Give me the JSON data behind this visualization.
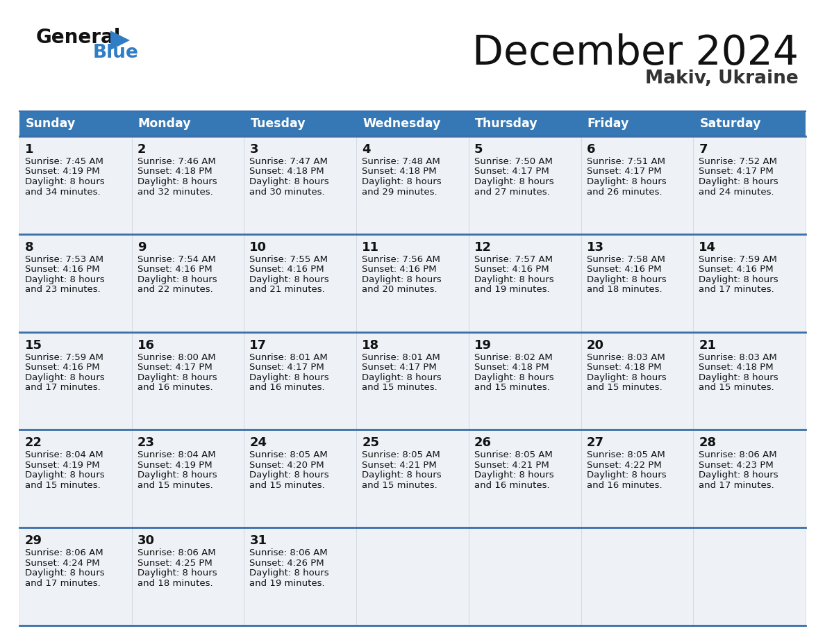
{
  "title": "December 2024",
  "subtitle": "Makiv, Ukraine",
  "days_of_week": [
    "Sunday",
    "Monday",
    "Tuesday",
    "Wednesday",
    "Thursday",
    "Friday",
    "Saturday"
  ],
  "header_bg": "#3578b5",
  "header_text_color": "#ffffff",
  "cell_bg": "#eef2f7",
  "border_color": "#3a6fa8",
  "text_color": "#111111",
  "logo_black": "#111111",
  "logo_blue": "#2e7dc5",
  "calendar_data": [
    [
      {
        "day": 1,
        "sunrise": "7:45 AM",
        "sunset": "4:19 PM",
        "daylight_h": "8 hours",
        "daylight_m": "and 34 minutes."
      },
      {
        "day": 2,
        "sunrise": "7:46 AM",
        "sunset": "4:18 PM",
        "daylight_h": "8 hours",
        "daylight_m": "and 32 minutes."
      },
      {
        "day": 3,
        "sunrise": "7:47 AM",
        "sunset": "4:18 PM",
        "daylight_h": "8 hours",
        "daylight_m": "and 30 minutes."
      },
      {
        "day": 4,
        "sunrise": "7:48 AM",
        "sunset": "4:18 PM",
        "daylight_h": "8 hours",
        "daylight_m": "and 29 minutes."
      },
      {
        "day": 5,
        "sunrise": "7:50 AM",
        "sunset": "4:17 PM",
        "daylight_h": "8 hours",
        "daylight_m": "and 27 minutes."
      },
      {
        "day": 6,
        "sunrise": "7:51 AM",
        "sunset": "4:17 PM",
        "daylight_h": "8 hours",
        "daylight_m": "and 26 minutes."
      },
      {
        "day": 7,
        "sunrise": "7:52 AM",
        "sunset": "4:17 PM",
        "daylight_h": "8 hours",
        "daylight_m": "and 24 minutes."
      }
    ],
    [
      {
        "day": 8,
        "sunrise": "7:53 AM",
        "sunset": "4:16 PM",
        "daylight_h": "8 hours",
        "daylight_m": "and 23 minutes."
      },
      {
        "day": 9,
        "sunrise": "7:54 AM",
        "sunset": "4:16 PM",
        "daylight_h": "8 hours",
        "daylight_m": "and 22 minutes."
      },
      {
        "day": 10,
        "sunrise": "7:55 AM",
        "sunset": "4:16 PM",
        "daylight_h": "8 hours",
        "daylight_m": "and 21 minutes."
      },
      {
        "day": 11,
        "sunrise": "7:56 AM",
        "sunset": "4:16 PM",
        "daylight_h": "8 hours",
        "daylight_m": "and 20 minutes."
      },
      {
        "day": 12,
        "sunrise": "7:57 AM",
        "sunset": "4:16 PM",
        "daylight_h": "8 hours",
        "daylight_m": "and 19 minutes."
      },
      {
        "day": 13,
        "sunrise": "7:58 AM",
        "sunset": "4:16 PM",
        "daylight_h": "8 hours",
        "daylight_m": "and 18 minutes."
      },
      {
        "day": 14,
        "sunrise": "7:59 AM",
        "sunset": "4:16 PM",
        "daylight_h": "8 hours",
        "daylight_m": "and 17 minutes."
      }
    ],
    [
      {
        "day": 15,
        "sunrise": "7:59 AM",
        "sunset": "4:16 PM",
        "daylight_h": "8 hours",
        "daylight_m": "and 17 minutes."
      },
      {
        "day": 16,
        "sunrise": "8:00 AM",
        "sunset": "4:17 PM",
        "daylight_h": "8 hours",
        "daylight_m": "and 16 minutes."
      },
      {
        "day": 17,
        "sunrise": "8:01 AM",
        "sunset": "4:17 PM",
        "daylight_h": "8 hours",
        "daylight_m": "and 16 minutes."
      },
      {
        "day": 18,
        "sunrise": "8:01 AM",
        "sunset": "4:17 PM",
        "daylight_h": "8 hours",
        "daylight_m": "and 15 minutes."
      },
      {
        "day": 19,
        "sunrise": "8:02 AM",
        "sunset": "4:18 PM",
        "daylight_h": "8 hours",
        "daylight_m": "and 15 minutes."
      },
      {
        "day": 20,
        "sunrise": "8:03 AM",
        "sunset": "4:18 PM",
        "daylight_h": "8 hours",
        "daylight_m": "and 15 minutes."
      },
      {
        "day": 21,
        "sunrise": "8:03 AM",
        "sunset": "4:18 PM",
        "daylight_h": "8 hours",
        "daylight_m": "and 15 minutes."
      }
    ],
    [
      {
        "day": 22,
        "sunrise": "8:04 AM",
        "sunset": "4:19 PM",
        "daylight_h": "8 hours",
        "daylight_m": "and 15 minutes."
      },
      {
        "day": 23,
        "sunrise": "8:04 AM",
        "sunset": "4:19 PM",
        "daylight_h": "8 hours",
        "daylight_m": "and 15 minutes."
      },
      {
        "day": 24,
        "sunrise": "8:05 AM",
        "sunset": "4:20 PM",
        "daylight_h": "8 hours",
        "daylight_m": "and 15 minutes."
      },
      {
        "day": 25,
        "sunrise": "8:05 AM",
        "sunset": "4:21 PM",
        "daylight_h": "8 hours",
        "daylight_m": "and 15 minutes."
      },
      {
        "day": 26,
        "sunrise": "8:05 AM",
        "sunset": "4:21 PM",
        "daylight_h": "8 hours",
        "daylight_m": "and 16 minutes."
      },
      {
        "day": 27,
        "sunrise": "8:05 AM",
        "sunset": "4:22 PM",
        "daylight_h": "8 hours",
        "daylight_m": "and 16 minutes."
      },
      {
        "day": 28,
        "sunrise": "8:06 AM",
        "sunset": "4:23 PM",
        "daylight_h": "8 hours",
        "daylight_m": "and 17 minutes."
      }
    ],
    [
      {
        "day": 29,
        "sunrise": "8:06 AM",
        "sunset": "4:24 PM",
        "daylight_h": "8 hours",
        "daylight_m": "and 17 minutes."
      },
      {
        "day": 30,
        "sunrise": "8:06 AM",
        "sunset": "4:25 PM",
        "daylight_h": "8 hours",
        "daylight_m": "and 18 minutes."
      },
      {
        "day": 31,
        "sunrise": "8:06 AM",
        "sunset": "4:26 PM",
        "daylight_h": "8 hours",
        "daylight_m": "and 19 minutes."
      },
      null,
      null,
      null,
      null
    ]
  ]
}
